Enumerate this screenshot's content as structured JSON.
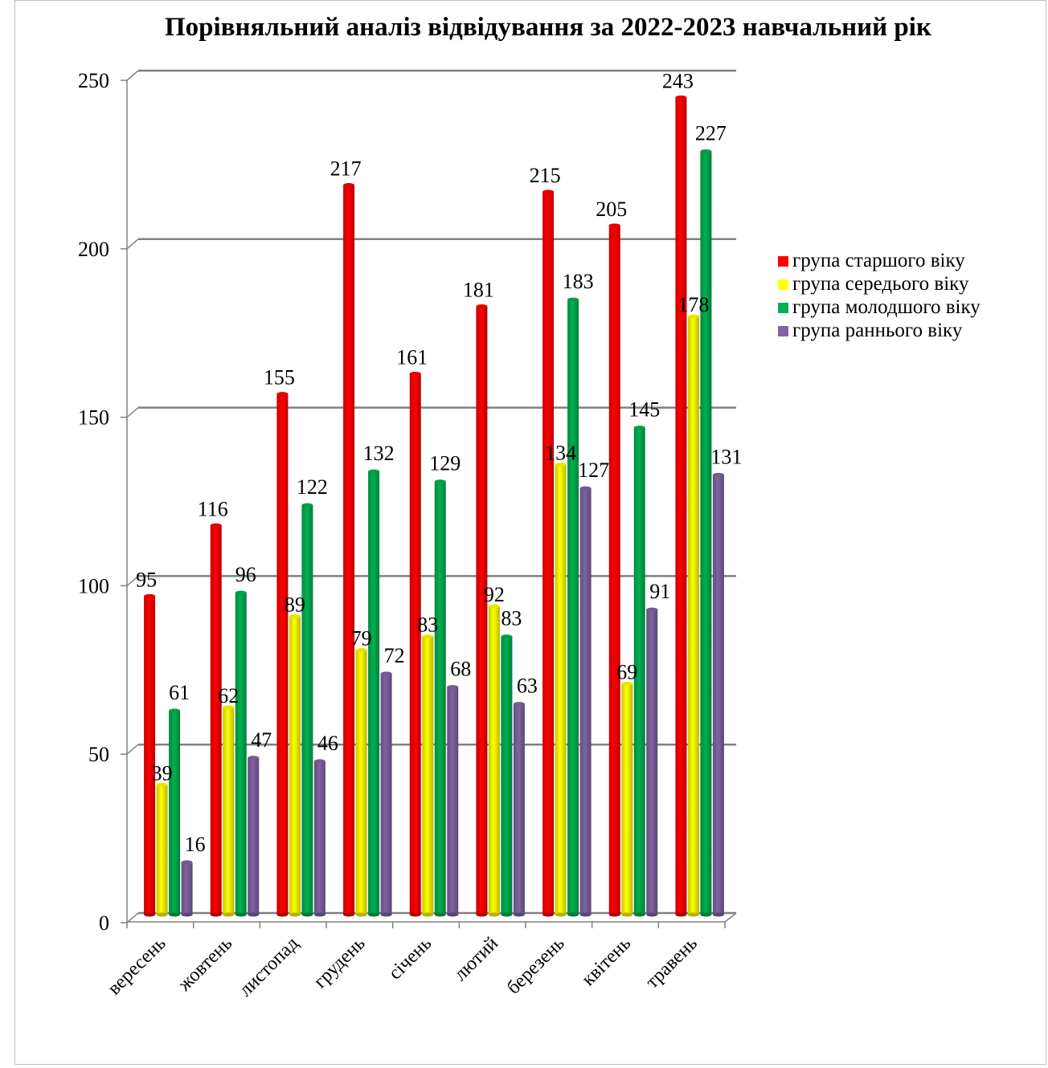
{
  "chart_data": {
    "type": "bar",
    "title": "Порівняльний аналіз відвідування за 2022-2023 навчальний рік",
    "xlabel": "",
    "ylabel": "",
    "ylim": [
      0,
      250
    ],
    "yticks": [
      0,
      50,
      100,
      150,
      200,
      250
    ],
    "grid": true,
    "legend_position": "right",
    "categories": [
      "вересень",
      "жовтень",
      "листопад",
      "грудень",
      "січень",
      "лютий",
      "березень",
      "квітень",
      "травень"
    ],
    "series": [
      {
        "name": "група старшого віку",
        "color": "#ff0000",
        "values": [
          95,
          116,
          155,
          217,
          161,
          181,
          215,
          205,
          243
        ]
      },
      {
        "name": "група середього віку",
        "color": "#ffff00",
        "values": [
          39,
          62,
          89,
          79,
          83,
          92,
          134,
          69,
          178
        ]
      },
      {
        "name": "група молодшого віку",
        "color": "#00b050",
        "values": [
          61,
          96,
          122,
          132,
          129,
          83,
          183,
          145,
          227
        ]
      },
      {
        "name": "група раннього віку",
        "color": "#8064a2",
        "values": [
          16,
          47,
          46,
          72,
          68,
          63,
          127,
          91,
          131
        ]
      }
    ]
  }
}
